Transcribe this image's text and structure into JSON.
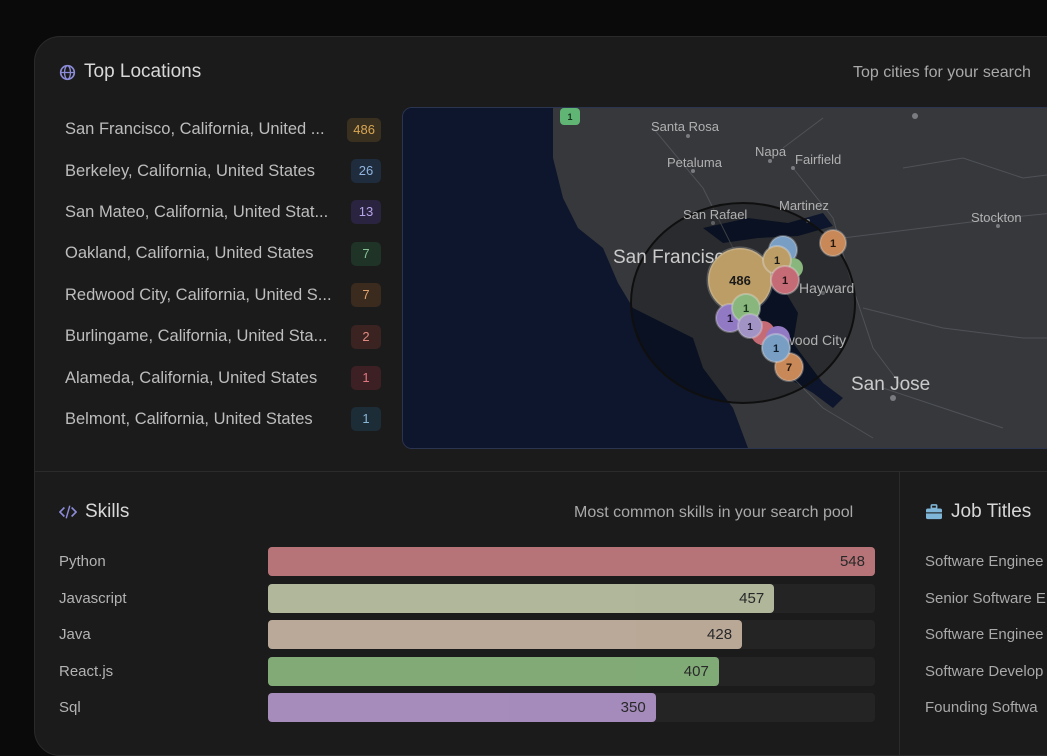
{
  "top_locations": {
    "title": "Top Locations",
    "subtitle": "Top cities for your search",
    "items": [
      {
        "name": "San Francisco, California, United ...",
        "count": "486",
        "color": "#d8a654",
        "bg": "#3a3020"
      },
      {
        "name": "Berkeley, California, United States",
        "count": "26",
        "color": "#8fb5e0",
        "bg": "#1f2c3d"
      },
      {
        "name": "San Mateo, California, United Stat...",
        "count": "13",
        "color": "#b7a5ea",
        "bg": "#2a2440"
      },
      {
        "name": "Oakland, California, United States",
        "count": "7",
        "color": "#86c196",
        "bg": "#1f3327"
      },
      {
        "name": "Redwood City, California, United S...",
        "count": "7",
        "color": "#e0a26d",
        "bg": "#3b2a1e"
      },
      {
        "name": "Burlingame, California, United Sta...",
        "count": "2",
        "color": "#e08a80",
        "bg": "#3b2322"
      },
      {
        "name": "Alameda, California, United States",
        "count": "1",
        "color": "#e0787f",
        "bg": "#3d2024"
      },
      {
        "name": "Belmont, California, United States",
        "count": "1",
        "color": "#86b7d6",
        "bg": "#1d2d38"
      }
    ]
  },
  "map": {
    "labels": {
      "santa_rosa": "Santa Rosa",
      "petaluma": "Petaluma",
      "napa": "Napa",
      "fairfield": "Fairfield",
      "martinez": "Martinez",
      "san_rafael": "San Rafael",
      "stockton": "Stockton",
      "san_francisco": "San Francisco",
      "hayward": "Hayward",
      "redwood_city": "Redwood City",
      "san_jose": "San Jose"
    },
    "markers": {
      "m486": "486",
      "m1a": "1",
      "m1b": "1",
      "m1c": "1",
      "m1d": "1",
      "m1e": "1",
      "m1f": "1",
      "m1g": "1",
      "m1h": "1",
      "m7": "7"
    }
  },
  "skills": {
    "title": "Skills",
    "subtitle": "Most common skills in your search pool",
    "max": 548,
    "items": [
      {
        "name": "Python",
        "value": 548,
        "label": "548",
        "color": "#e08a90"
      },
      {
        "name": "Javascript",
        "value": 457,
        "label": "457",
        "color": "#d7e0bc"
      },
      {
        "name": "Java",
        "value": 428,
        "label": "428",
        "color": "#e4cdb8"
      },
      {
        "name": "React.js",
        "value": 407,
        "label": "407",
        "color": "#9bd08e"
      },
      {
        "name": "Sql",
        "value": 350,
        "label": "350",
        "color": "#c9a9e6"
      }
    ]
  },
  "job_titles": {
    "title": "Job Titles",
    "items": [
      "Software Enginee",
      "Senior Software E",
      "Software Enginee",
      "Software Develop",
      "Founding Softwa"
    ]
  }
}
